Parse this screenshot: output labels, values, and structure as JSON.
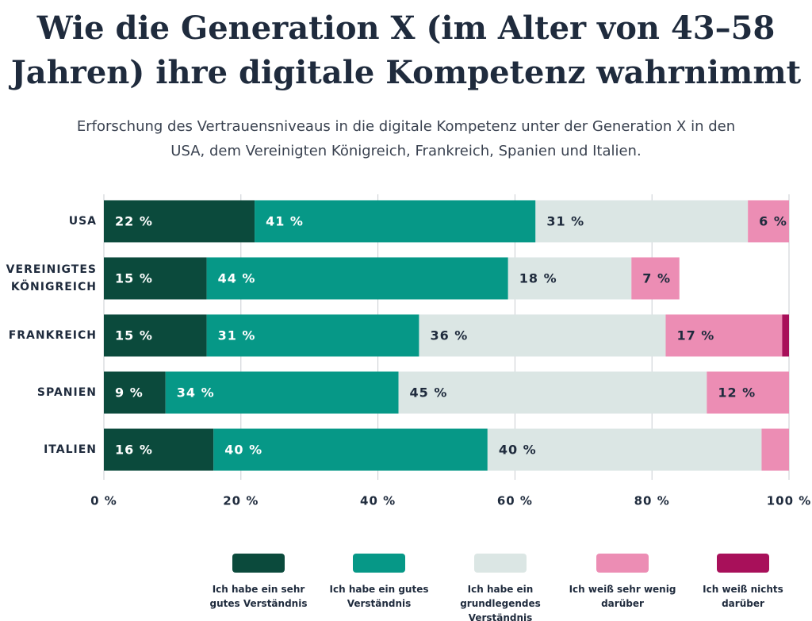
{
  "chart_data": {
    "type": "stacked-bar-horizontal",
    "title": "Wie die Generation X (im Alter von 43–58 Jahren) ihre digitale Kompetenz wahrnimmt",
    "subtitle": "Erforschung des Vertrauensniveaus in die digitale Kompetenz unter der Generation X in den USA, dem Vereinigten Königreich, Frankreich, Spanien und Italien.",
    "categories": [
      "USA",
      "VEREINIGTES KÖNIGREICH",
      "FRANKREICH",
      "SPANIEN",
      "ITALIEN"
    ],
    "series": [
      {
        "name": "Ich habe ein sehr gutes Verständnis",
        "color": "#0b4a3c",
        "values": [
          22,
          15,
          15,
          9,
          16
        ],
        "value_labels": [
          "22 %",
          "15 %",
          "15 %",
          "9 %",
          "16 %"
        ]
      },
      {
        "name": "Ich habe ein gutes Verständnis",
        "color": "#069887",
        "values": [
          41,
          44,
          31,
          34,
          40
        ],
        "value_labels": [
          "41 %",
          "44 %",
          "31 %",
          "34 %",
          "40 %"
        ]
      },
      {
        "name": "Ich habe ein grundlegendes Verständnis",
        "color": "#dbe6e4",
        "values": [
          31,
          18,
          36,
          45,
          40
        ],
        "value_labels": [
          "31 %",
          "18 %",
          "36 %",
          "45 %",
          "40 %"
        ]
      },
      {
        "name": "Ich weiß sehr wenig darüber",
        "color": "#ec8db4",
        "values": [
          6,
          7,
          17,
          12,
          4
        ],
        "value_labels": [
          "6 %",
          "7 %",
          "17 %",
          "12 %",
          null
        ]
      },
      {
        "name": "Ich weiß nichts darüber",
        "color": "#a8105a",
        "values": [
          0,
          0,
          1,
          0,
          0
        ]
      }
    ],
    "xlim": [
      0,
      100
    ],
    "xticks": [
      {
        "value": 0,
        "label": "0 %"
      },
      {
        "value": 20,
        "label": "20 %"
      },
      {
        "value": 40,
        "label": "40 %"
      },
      {
        "value": 60,
        "label": "60 %"
      },
      {
        "value": 80,
        "label": "80 %"
      },
      {
        "value": 100,
        "label": "100 %"
      }
    ],
    "grid": true
  }
}
